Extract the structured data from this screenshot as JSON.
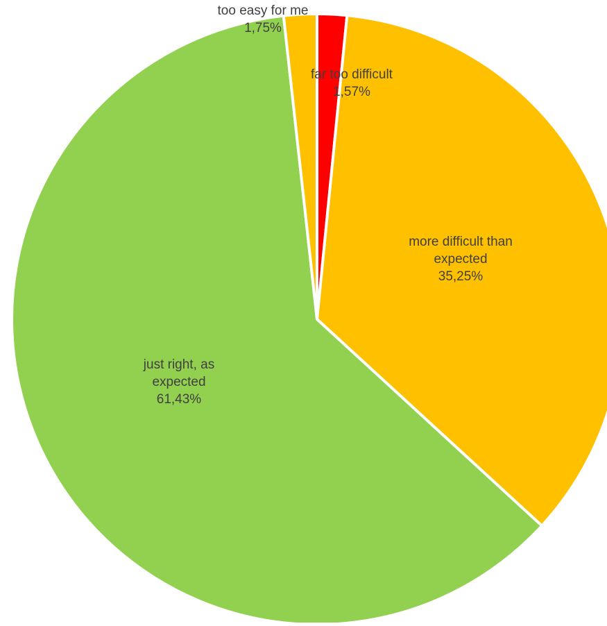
{
  "chart_data": {
    "type": "pie",
    "start_angle_deg": 0,
    "direction": "clockwise",
    "slices": [
      {
        "label": "far too difficult",
        "label_lines": [
          "far too difficult"
        ],
        "percent_label": "1,57%",
        "value": 1.57,
        "color": "#ff0000"
      },
      {
        "label": "more difficult than expected",
        "label_lines": [
          "more difficult than",
          "expected"
        ],
        "percent_label": "35,25%",
        "value": 35.25,
        "color": "#ffc000"
      },
      {
        "label": "just right, as expected",
        "label_lines": [
          "just right, as",
          "expected"
        ],
        "percent_label": "61,43%",
        "value": 61.43,
        "color": "#92d050"
      },
      {
        "label": "too easy for me",
        "label_lines": [
          "too easy for me"
        ],
        "percent_label": "1,75%",
        "value": 1.75,
        "color": "#ffc000"
      }
    ],
    "slice_border_color": "#ffffff",
    "label_color": "#404040"
  }
}
